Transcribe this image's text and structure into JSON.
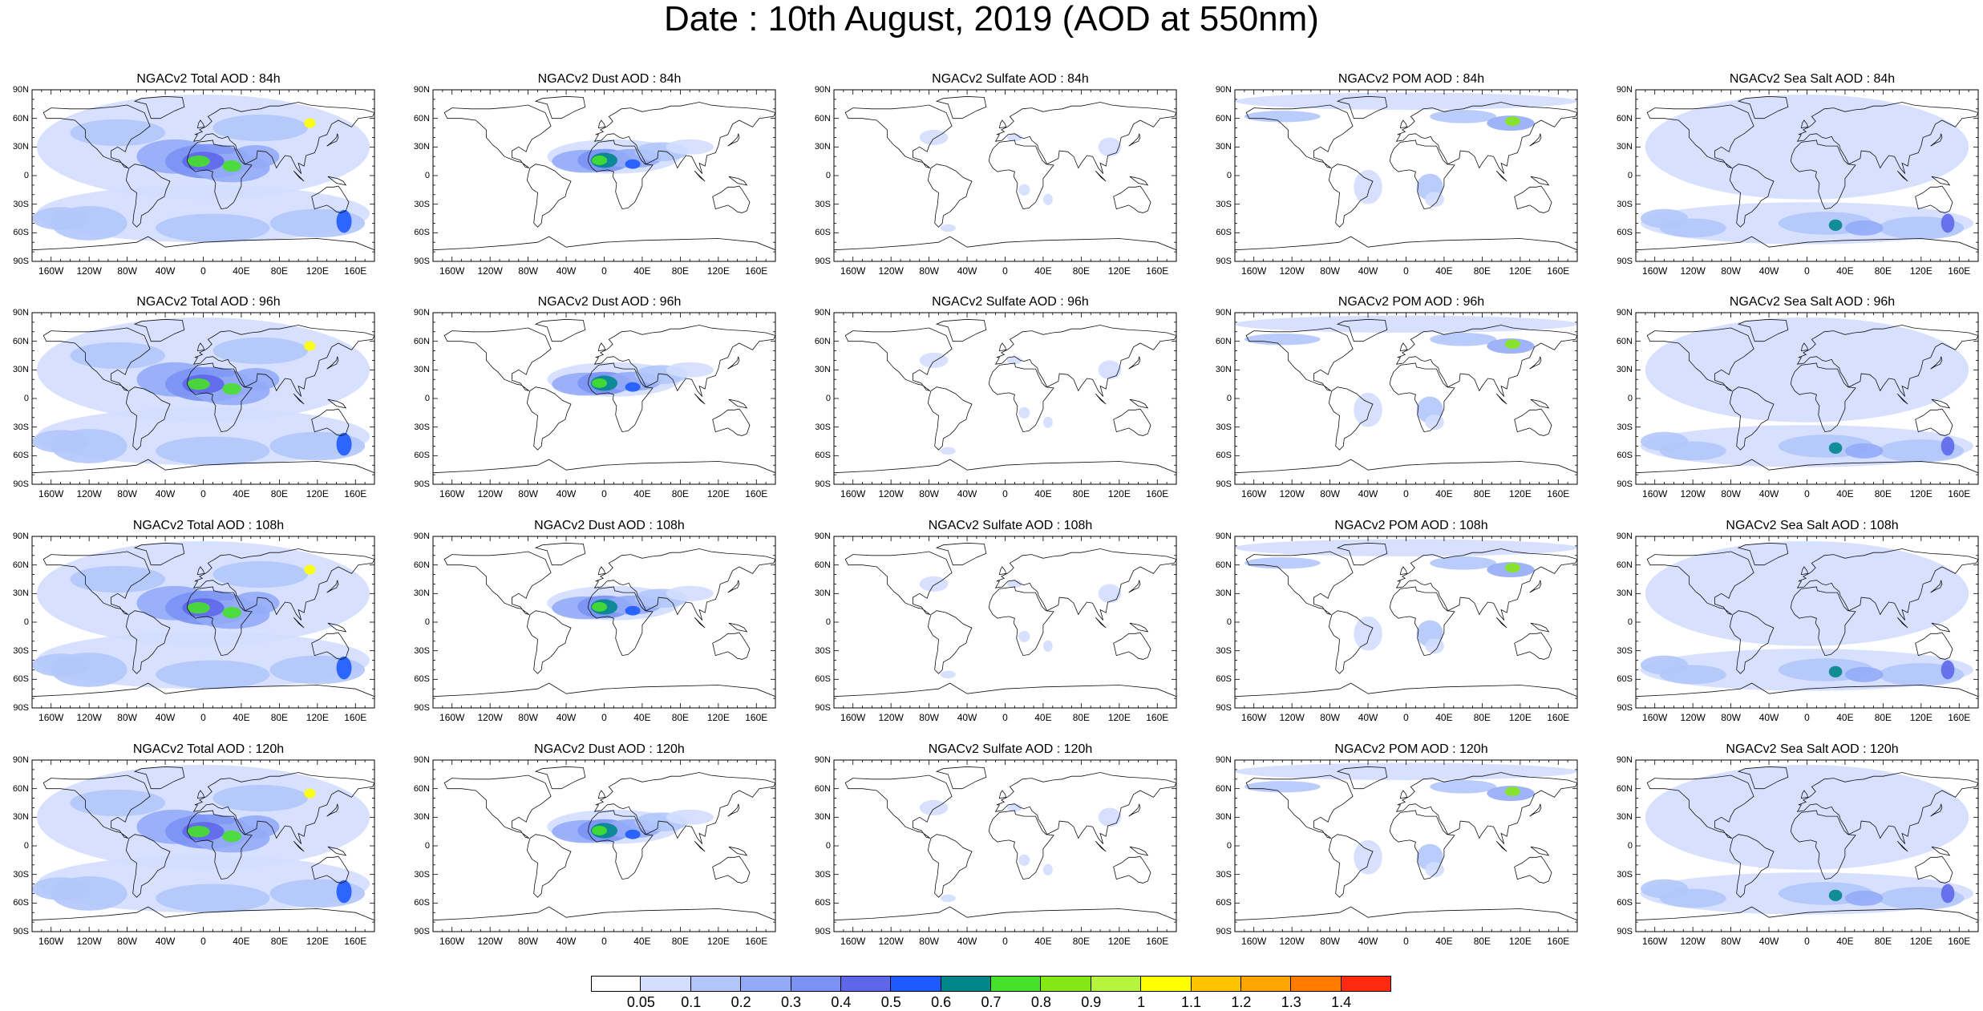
{
  "title": "Date : 10th August, 2019 (AOD at 550nm)",
  "lat_labels": [
    "90N",
    "60N",
    "30N",
    "0",
    "30S",
    "60S",
    "90S"
  ],
  "lon_labels": [
    "160W",
    "120W",
    "80W",
    "40W",
    "0",
    "40E",
    "80E",
    "120E",
    "160E"
  ],
  "rows": [
    {
      "panels": [
        {
          "title": "NGACv2 Total AOD : 84h",
          "variable": "total"
        },
        {
          "title": "NGACv2 Dust AOD : 84h",
          "variable": "dust"
        },
        {
          "title": "NGACv2 Sulfate AOD : 84h",
          "variable": "sulfate"
        },
        {
          "title": "NGACv2 POM AOD : 84h",
          "variable": "pom"
        },
        {
          "title": "NGACv2 Sea Salt AOD : 84h",
          "variable": "seasalt"
        }
      ]
    },
    {
      "panels": [
        {
          "title": "NGACv2 Total AOD : 96h",
          "variable": "total"
        },
        {
          "title": "NGACv2 Dust AOD : 96h",
          "variable": "dust"
        },
        {
          "title": "NGACv2 Sulfate AOD : 96h",
          "variable": "sulfate"
        },
        {
          "title": "NGACv2 POM AOD : 96h",
          "variable": "pom"
        },
        {
          "title": "NGACv2 Sea Salt AOD : 96h",
          "variable": "seasalt"
        }
      ]
    },
    {
      "panels": [
        {
          "title": "NGACv2 Total AOD : 108h",
          "variable": "total"
        },
        {
          "title": "NGACv2 Dust AOD : 108h",
          "variable": "dust"
        },
        {
          "title": "NGACv2 Sulfate AOD : 108h",
          "variable": "sulfate"
        },
        {
          "title": "NGACv2 POM AOD : 108h",
          "variable": "pom"
        },
        {
          "title": "NGACv2 Sea Salt AOD : 108h",
          "variable": "seasalt"
        }
      ]
    },
    {
      "panels": [
        {
          "title": "NGACv2 Total AOD : 120h",
          "variable": "total"
        },
        {
          "title": "NGACv2 Dust AOD : 120h",
          "variable": "dust"
        },
        {
          "title": "NGACv2 Sulfate AOD : 120h",
          "variable": "sulfate"
        },
        {
          "title": "NGACv2 POM AOD : 120h",
          "variable": "pom"
        },
        {
          "title": "NGACv2 Sea Salt  AOD : 120h",
          "variable": "seasalt"
        }
      ]
    }
  ],
  "colorbar": {
    "labels": [
      "0.05",
      "0.1",
      "0.2",
      "0.3",
      "0.4",
      "0.5",
      "0.6",
      "0.7",
      "0.8",
      "0.9",
      "1",
      "1.1",
      "1.2",
      "1.3",
      "1.4"
    ],
    "colors": [
      "#ffffff",
      "#d3deff",
      "#b3c6fb",
      "#93abf7",
      "#7a92f3",
      "#5e67ea",
      "#1e5bff",
      "#00868b",
      "#47e02b",
      "#84e716",
      "#b5f53d",
      "#ffff00",
      "#ffc400",
      "#ffa700",
      "#ff7c00",
      "#ff2a10"
    ]
  }
}
